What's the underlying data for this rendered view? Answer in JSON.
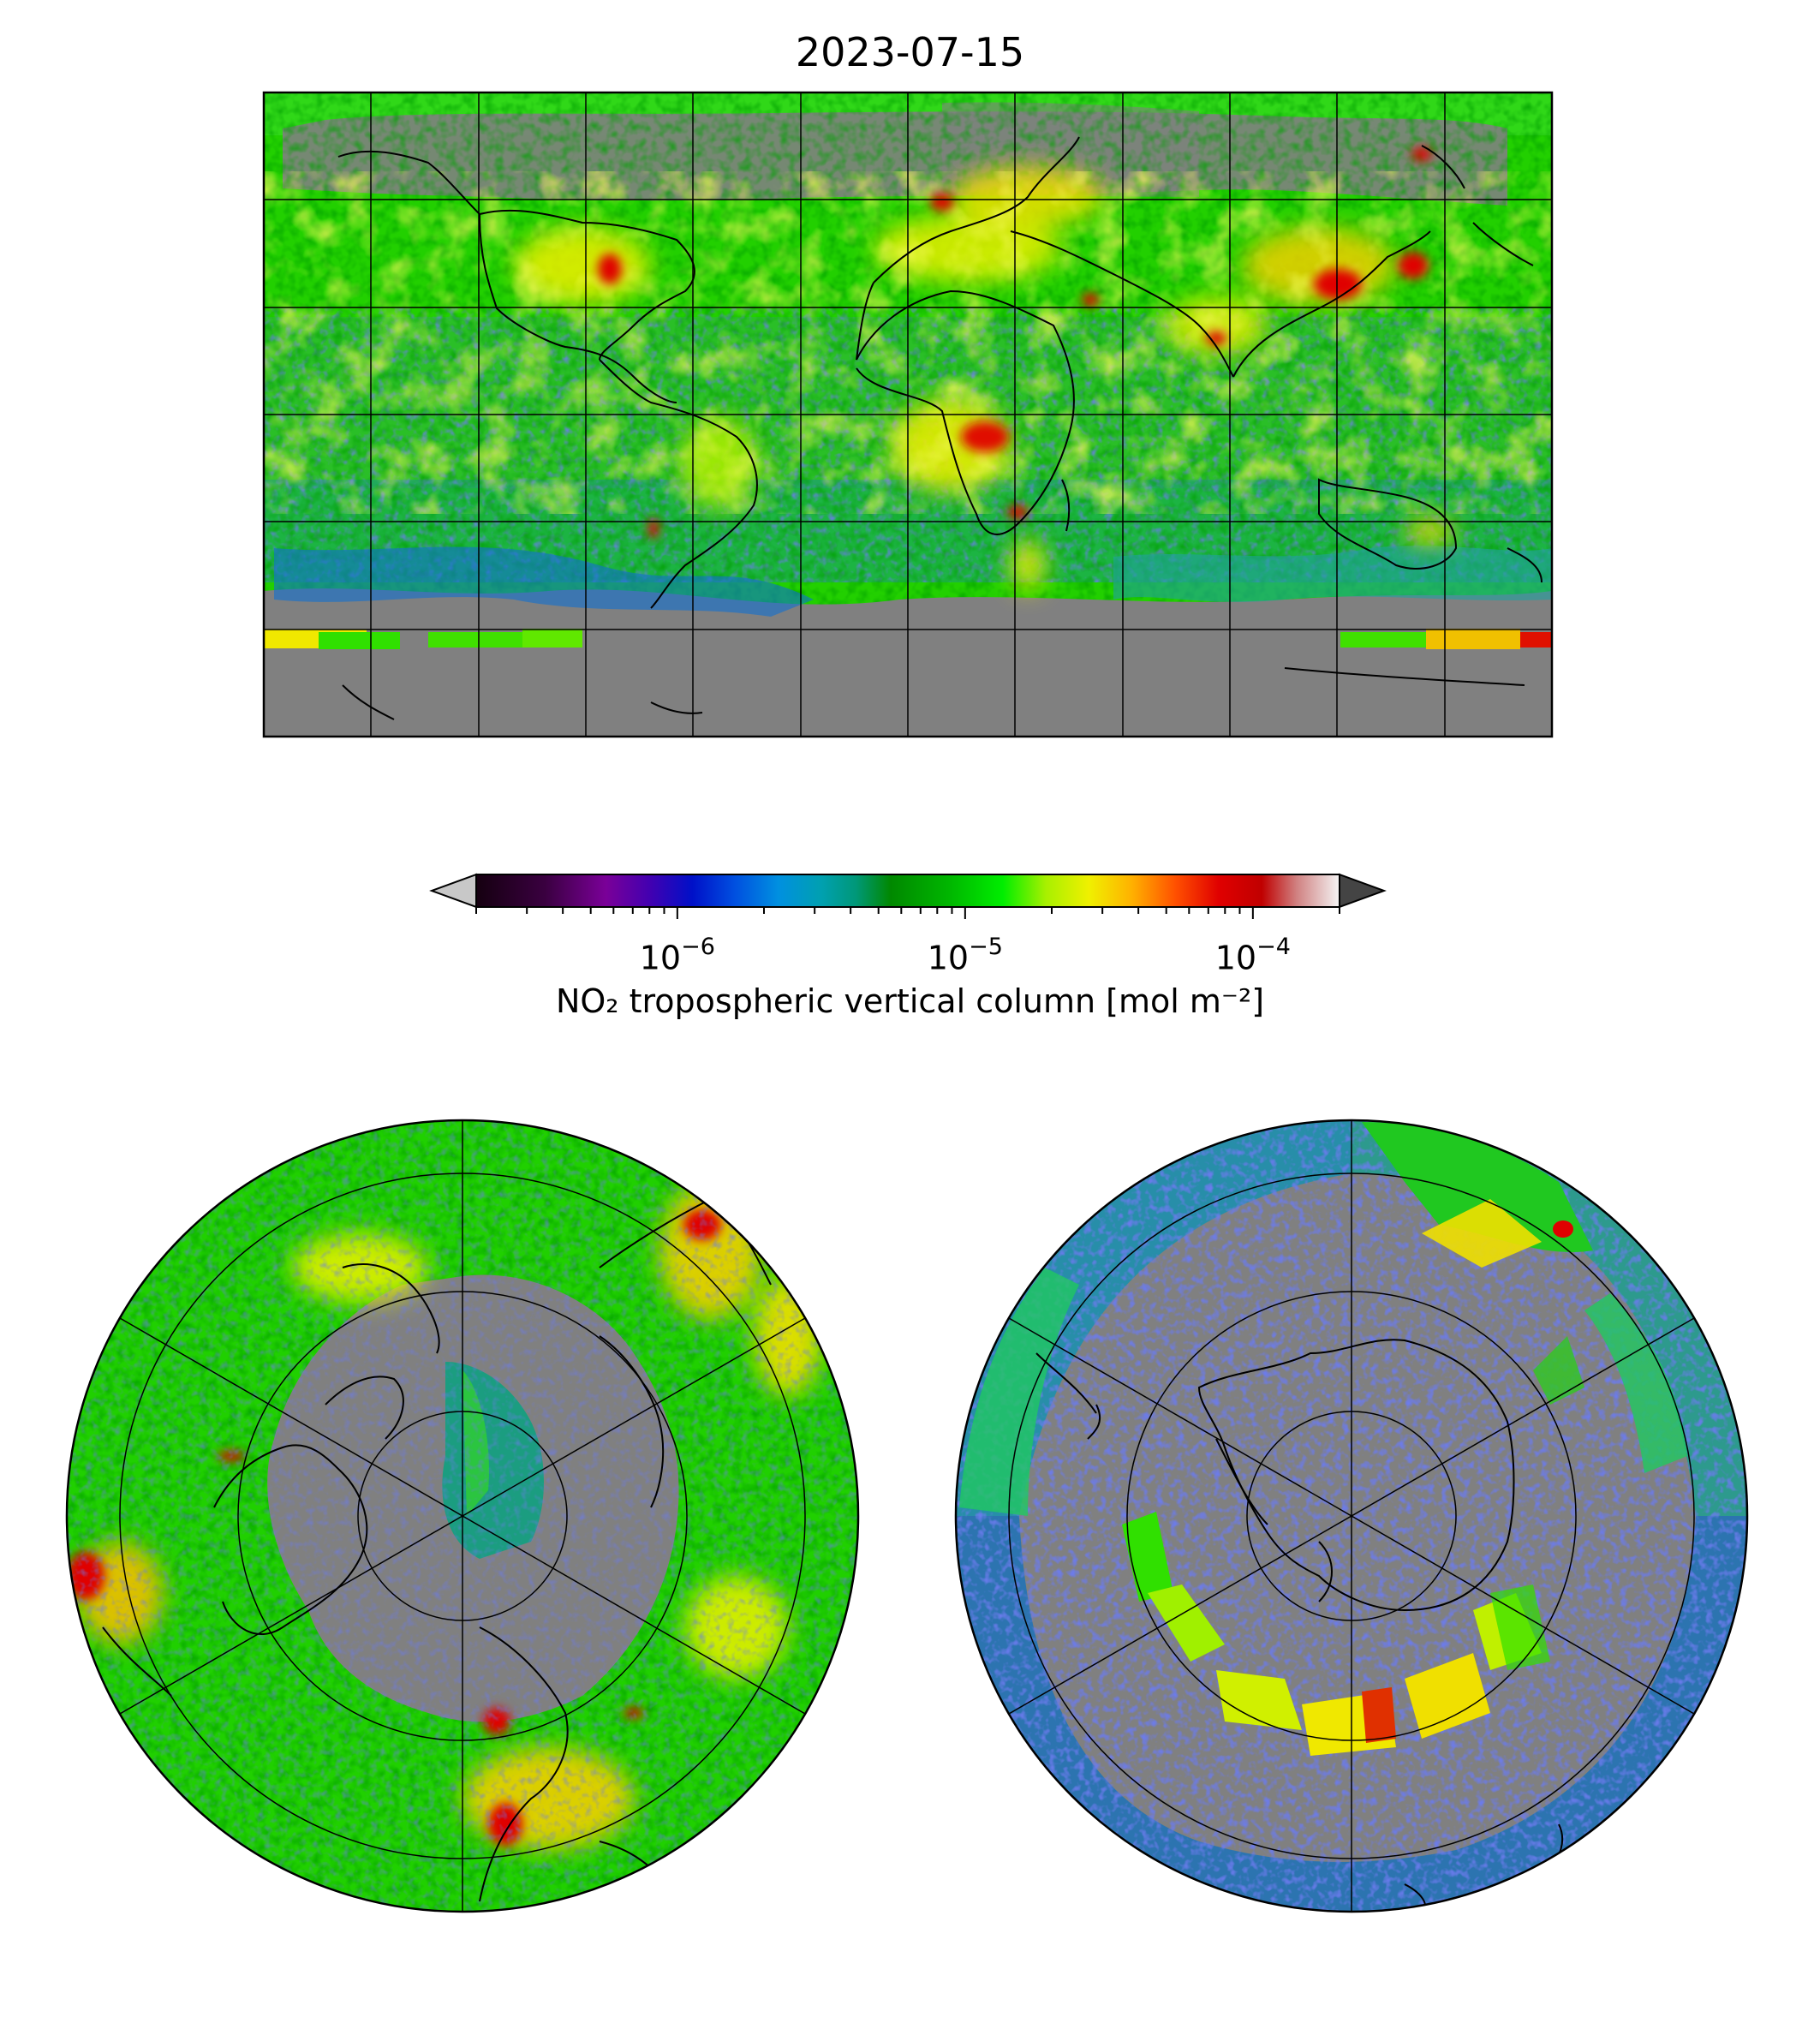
{
  "title": "2023-07-15",
  "colorbar": {
    "label": "NO₂ tropospheric vertical column [mol m⁻²]",
    "scale": "log",
    "range": [
      2e-07,
      0.0002
    ],
    "extend": "both",
    "ticks": [
      {
        "value": 1e-06,
        "base": "10",
        "exp": "−6"
      },
      {
        "value": 1e-05,
        "base": "10",
        "exp": "−5"
      },
      {
        "value": 0.0001,
        "base": "10",
        "exp": "−4"
      }
    ],
    "colors": [
      "#1a0014",
      "#330044",
      "#6a0099",
      "#4a00b0",
      "#0000c8",
      "#0040e0",
      "#0080e8",
      "#00a0c8",
      "#00a090",
      "#009040",
      "#008000",
      "#00b000",
      "#00e000",
      "#80f000",
      "#e0f000",
      "#ffd000",
      "#ff8000",
      "#ff2000",
      "#d00000",
      "#c01010",
      "#e0a0a0",
      "#f0f0f0"
    ],
    "over_color": "#444444",
    "under_color": "#c8c8c8"
  },
  "maps": {
    "global": {
      "projection": "PlateCarree",
      "gridlines": true
    },
    "north_polar": {
      "projection": "NorthPolarStereo",
      "gridlines": true
    },
    "south_polar": {
      "projection": "SouthPolarStereo",
      "gridlines": true
    }
  },
  "colors": {
    "land_nodata": "#808080",
    "background": "#00c800"
  }
}
